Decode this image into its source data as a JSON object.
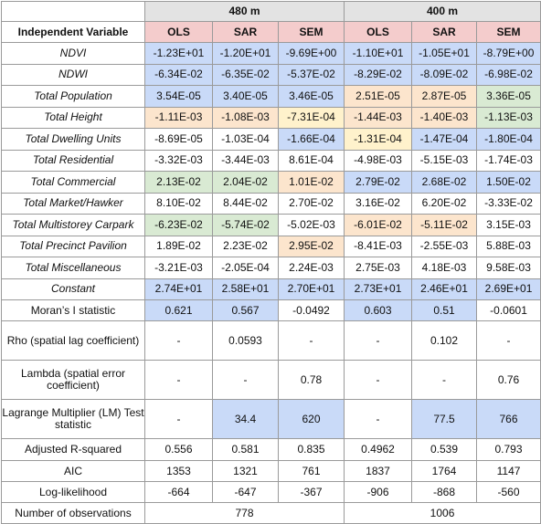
{
  "header": {
    "group_480": "480 m",
    "group_400": "400 m",
    "iv_label": "Independent Variable",
    "models": [
      "OLS",
      "SAR",
      "SEM",
      "OLS",
      "SAR",
      "SEM"
    ]
  },
  "colors": {
    "blue": "#c9daf8",
    "yellow": "#fff2cc",
    "orange": "#fce5cd",
    "green": "#d9ead3",
    "header_pink": "#f4cccc",
    "header_gray": "#e3e3e3"
  },
  "variables": [
    {
      "label": "NDVI",
      "values": [
        "-1.23E+01",
        "-1.20E+01",
        "-9.69E+00",
        "-1.10E+01",
        "-1.05E+01",
        "-8.79E+00"
      ],
      "colors": [
        "blue",
        "blue",
        "blue",
        "blue",
        "blue",
        "blue"
      ]
    },
    {
      "label": "NDWI",
      "values": [
        "-6.34E-02",
        "-6.35E-02",
        "-5.37E-02",
        "-8.29E-02",
        "-8.09E-02",
        "-6.98E-02"
      ],
      "colors": [
        "blue",
        "blue",
        "blue",
        "blue",
        "blue",
        "blue"
      ]
    },
    {
      "label": "Total Population",
      "values": [
        "3.54E-05",
        "3.40E-05",
        "3.46E-05",
        "2.51E-05",
        "2.87E-05",
        "3.36E-05"
      ],
      "colors": [
        "blue",
        "blue",
        "blue",
        "orange",
        "orange",
        "green"
      ]
    },
    {
      "label": "Total Height",
      "values": [
        "-1.11E-03",
        "-1.08E-03",
        "-7.31E-04",
        "-1.44E-03",
        "-1.40E-03",
        "-1.13E-03"
      ],
      "colors": [
        "orange",
        "orange",
        "yellow",
        "orange",
        "orange",
        "green"
      ]
    },
    {
      "label": "Total Dwelling Units",
      "values": [
        "-8.69E-05",
        "-1.03E-04",
        "-1.66E-04",
        "-1.31E-04",
        "-1.47E-04",
        "-1.80E-04"
      ],
      "colors": [
        "",
        "",
        "blue",
        "yellow",
        "blue",
        "blue"
      ]
    },
    {
      "label": "Total Residential",
      "values": [
        "-3.32E-03",
        "-3.44E-03",
        "8.61E-04",
        "-4.98E-03",
        "-5.15E-03",
        "-1.74E-03"
      ],
      "colors": [
        "",
        "",
        "",
        "",
        "",
        ""
      ]
    },
    {
      "label": "Total Commercial",
      "values": [
        "2.13E-02",
        "2.04E-02",
        "1.01E-02",
        "2.79E-02",
        "2.68E-02",
        "1.50E-02"
      ],
      "colors": [
        "green",
        "green",
        "orange",
        "blue",
        "blue",
        "blue"
      ]
    },
    {
      "label": "Total Market/Hawker",
      "values": [
        "8.10E-02",
        "8.44E-02",
        "2.70E-02",
        "3.16E-02",
        "6.20E-02",
        "-3.33E-02"
      ],
      "colors": [
        "",
        "",
        "",
        "",
        "",
        ""
      ]
    },
    {
      "label": "Total Multistorey Carpark",
      "values": [
        "-6.23E-02",
        "-5.74E-02",
        "-5.02E-03",
        "-6.01E-02",
        "-5.11E-02",
        "3.15E-03"
      ],
      "colors": [
        "green",
        "green",
        "",
        "orange",
        "orange",
        ""
      ]
    },
    {
      "label": "Total Precinct Pavilion",
      "values": [
        "1.89E-02",
        "2.23E-02",
        "2.95E-02",
        "-8.41E-03",
        "-2.55E-03",
        "5.88E-03"
      ],
      "colors": [
        "",
        "",
        "orange",
        "",
        "",
        ""
      ]
    },
    {
      "label": "Total Miscellaneous",
      "values": [
        "-3.21E-03",
        "-2.05E-04",
        "2.24E-03",
        "2.75E-03",
        "4.18E-03",
        "9.58E-03"
      ],
      "colors": [
        "",
        "",
        "",
        "",
        "",
        ""
      ]
    },
    {
      "label": "Constant",
      "values": [
        "2.74E+01",
        "2.58E+01",
        "2.70E+01",
        "2.73E+01",
        "2.46E+01",
        "2.69E+01"
      ],
      "colors": [
        "blue",
        "blue",
        "blue",
        "blue",
        "blue",
        "blue"
      ]
    }
  ],
  "stats": [
    {
      "label": "Moran’s I statistic",
      "values": [
        "0.621",
        "0.567",
        "-0.0492",
        "0.603",
        "0.51",
        "-0.0601"
      ],
      "colors": [
        "blue",
        "blue",
        "",
        "blue",
        "blue",
        ""
      ]
    },
    {
      "label": "Rho (spatial lag coefficient)",
      "values": [
        "-",
        "0.0593",
        "-",
        "-",
        "0.102",
        "-"
      ],
      "colors": [
        "",
        "",
        "",
        "",
        "",
        ""
      ]
    },
    {
      "label": "Lambda (spatial error coefficient)",
      "values": [
        "-",
        "-",
        "0.78",
        "-",
        "-",
        "0.76"
      ],
      "colors": [
        "",
        "",
        "",
        "",
        "",
        ""
      ]
    },
    {
      "label": "Lagrange Multiplier (LM) Test statistic",
      "values": [
        "-",
        "34.4",
        "620",
        "-",
        "77.5",
        "766"
      ],
      "colors": [
        "",
        "blue",
        "blue",
        "",
        "blue",
        "blue"
      ]
    },
    {
      "label": "Adjusted R-squared",
      "values": [
        "0.556",
        "0.581",
        "0.835",
        "0.4962",
        "0.539",
        "0.793"
      ],
      "colors": [
        "",
        "",
        "",
        "",
        "",
        ""
      ]
    },
    {
      "label": "AIC",
      "values": [
        "1353",
        "1321",
        "761",
        "1837",
        "1764",
        "1147"
      ],
      "colors": [
        "",
        "",
        "",
        "",
        "",
        ""
      ]
    },
    {
      "label": "Log-likelihood",
      "values": [
        "-664",
        "-647",
        "-367",
        "-906",
        "-868",
        "-560"
      ],
      "colors": [
        "",
        "",
        "",
        "",
        "",
        ""
      ]
    }
  ],
  "observations": {
    "label": "Number of observations",
    "value_480": "778",
    "value_400": "1006"
  }
}
